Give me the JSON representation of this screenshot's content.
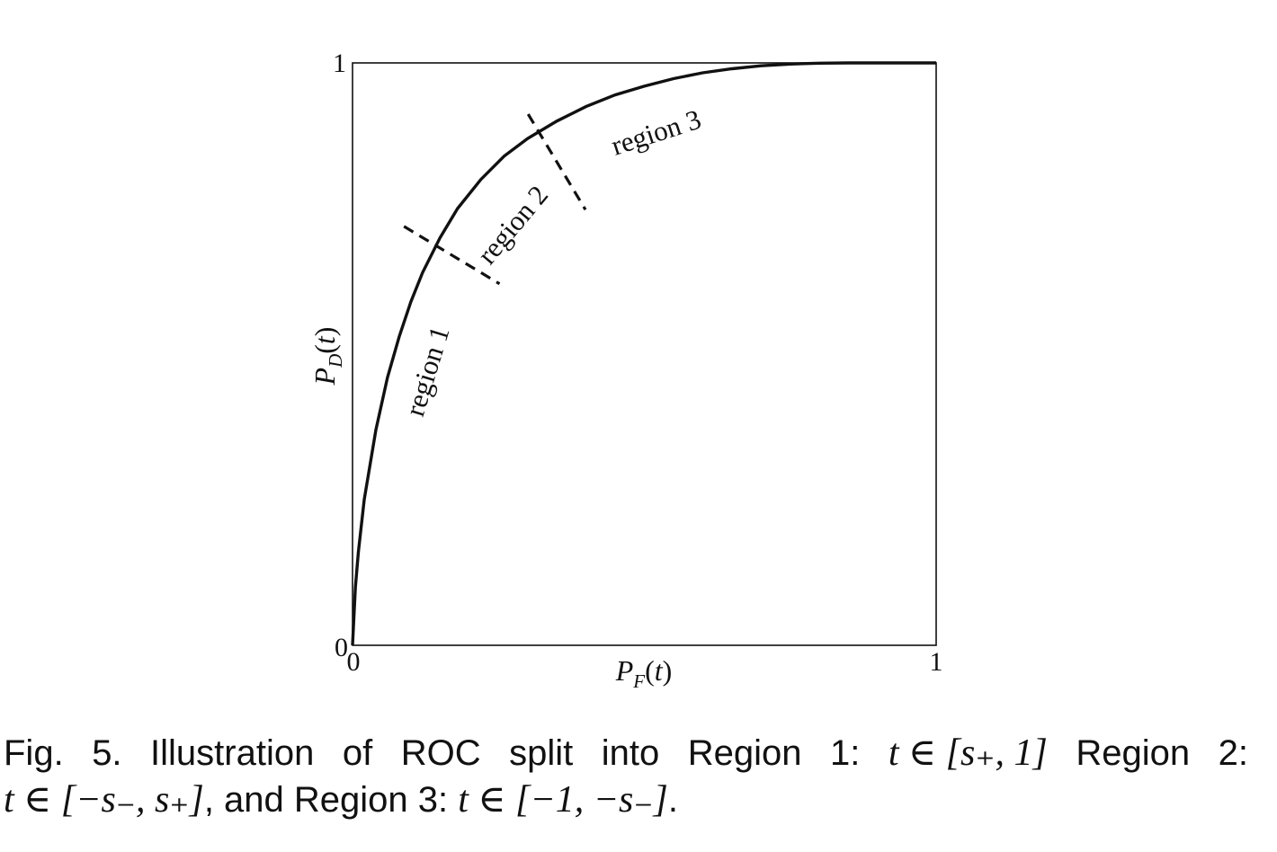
{
  "chart_data": {
    "type": "line",
    "xlabel": "P_F(t)",
    "ylabel": "P_D(t)",
    "xlim": [
      0,
      1
    ],
    "ylim": [
      0,
      1
    ],
    "x_ticks": [
      "0",
      "1"
    ],
    "y_ticks": [
      "0",
      "1"
    ],
    "grid": false,
    "series": [
      {
        "x": [
          0,
          0.005,
          0.01,
          0.02,
          0.04,
          0.06,
          0.08,
          0.1,
          0.12,
          0.15,
          0.18,
          0.22,
          0.26,
          0.3,
          0.35,
          0.4,
          0.45,
          0.5,
          0.55,
          0.6,
          0.65,
          0.7,
          0.75,
          0.8,
          0.85,
          0.9,
          0.95,
          1
        ],
        "y": [
          0,
          0.1,
          0.16,
          0.25,
          0.37,
          0.46,
          0.53,
          0.59,
          0.64,
          0.7,
          0.75,
          0.8,
          0.84,
          0.87,
          0.9,
          0.925,
          0.945,
          0.96,
          0.973,
          0.983,
          0.99,
          0.995,
          0.998,
          0.9995,
          1,
          1,
          1,
          1
        ]
      }
    ],
    "region_boundaries": [
      {
        "x": 0.17,
        "y": 0.67
      },
      {
        "x": 0.35,
        "y": 0.83
      }
    ],
    "annotations": [
      "region 1",
      "region 2",
      "region 3"
    ]
  },
  "caption": {
    "line1_words": [
      "Fig.",
      "5.",
      "Illustration",
      "of",
      "ROC",
      "split",
      "into",
      "Region",
      "1:"
    ],
    "line1_math1": "t ∈ [s₊, 1]",
    "line1_tail_words": [
      "Region",
      "2:"
    ],
    "line2_math1": "t ∈ [−s₋, s₊]",
    "line2_text1": ", and Region 3: ",
    "line2_math2": "t ∈ [−1, −s₋]",
    "line2_end": "."
  }
}
